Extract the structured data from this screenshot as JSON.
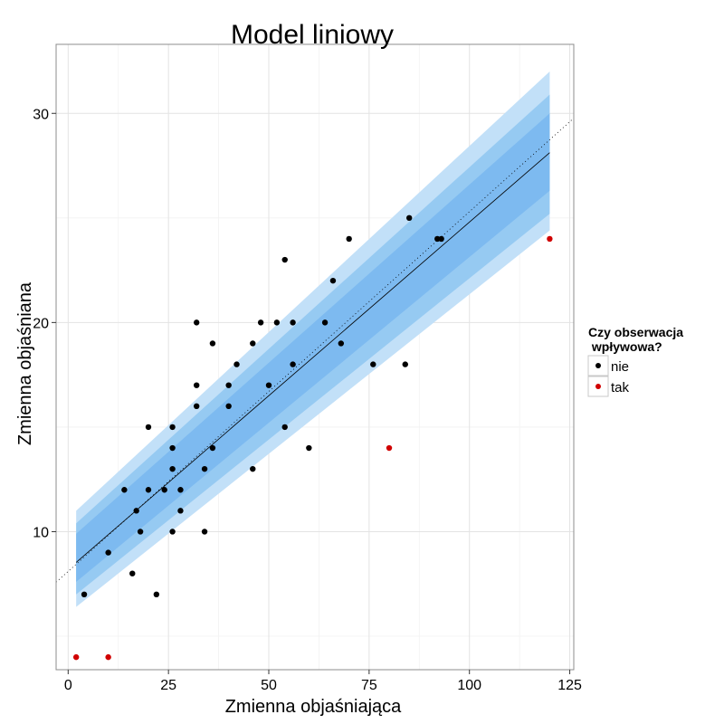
{
  "chart_data": {
    "type": "scatter",
    "title": "Model liniowy",
    "xlabel": "Zmienna objaśniająca",
    "ylabel": "Zmienna objaśniana",
    "xlim": [
      -3,
      126
    ],
    "ylim": [
      3.4,
      33.3
    ],
    "x_ticks": [
      0,
      25,
      50,
      75,
      100,
      125
    ],
    "y_ticks": [
      10,
      20,
      30
    ],
    "grid": true,
    "legend": {
      "title_line1": "Czy obserwacja",
      "title_line2": " wpływowa?",
      "placement": "right",
      "entries": [
        {
          "label": "nie",
          "color": "#000000"
        },
        {
          "label": "tak",
          "color": "#d00000"
        }
      ]
    },
    "fit_line": {
      "intercept": 8.2,
      "slope": 0.166,
      "x_range": [
        2,
        120
      ]
    },
    "reference_line": {
      "intercept": 8.1,
      "slope": 0.172,
      "style": "dotted"
    },
    "bands": [
      {
        "name": "outer",
        "color": "#c2e0f8",
        "x": [
          2,
          120
        ],
        "lower": [
          6.4,
          24.4
        ],
        "upper": [
          11.0,
          32.0
        ]
      },
      {
        "name": "middle",
        "color": "#96caf2",
        "x": [
          2,
          120
        ],
        "lower": [
          7.0,
          25.2
        ],
        "upper": [
          10.4,
          30.9
        ]
      },
      {
        "name": "inner",
        "color": "#7dbaf0",
        "x": [
          2,
          120
        ],
        "lower": [
          7.6,
          26.3
        ],
        "upper": [
          9.9,
          30.0
        ]
      }
    ],
    "series": [
      {
        "name": "nie",
        "color": "#000000",
        "points": [
          [
            4,
            7
          ],
          [
            10,
            9
          ],
          [
            14,
            12
          ],
          [
            16,
            8
          ],
          [
            17,
            11
          ],
          [
            18,
            10
          ],
          [
            20,
            15
          ],
          [
            20,
            12
          ],
          [
            22,
            7
          ],
          [
            24,
            12
          ],
          [
            26,
            15
          ],
          [
            26,
            14
          ],
          [
            26,
            13
          ],
          [
            26,
            10
          ],
          [
            28,
            12
          ],
          [
            28,
            11
          ],
          [
            32,
            20
          ],
          [
            32,
            17
          ],
          [
            32,
            16
          ],
          [
            34,
            13
          ],
          [
            34,
            10
          ],
          [
            36,
            19
          ],
          [
            36,
            14
          ],
          [
            40,
            17
          ],
          [
            40,
            16
          ],
          [
            42,
            18
          ],
          [
            46,
            19
          ],
          [
            46,
            13
          ],
          [
            48,
            20
          ],
          [
            50,
            17
          ],
          [
            52,
            20
          ],
          [
            54,
            23
          ],
          [
            54,
            15
          ],
          [
            56,
            20
          ],
          [
            56,
            18
          ],
          [
            60,
            14
          ],
          [
            64,
            20
          ],
          [
            66,
            22
          ],
          [
            68,
            19
          ],
          [
            70,
            24
          ],
          [
            76,
            18
          ],
          [
            84,
            18
          ],
          [
            85,
            25
          ],
          [
            92,
            24
          ],
          [
            93,
            24
          ]
        ]
      },
      {
        "name": "tak",
        "color": "#d00000",
        "points": [
          [
            2,
            4
          ],
          [
            10,
            4
          ],
          [
            80,
            14
          ],
          [
            120,
            24
          ]
        ]
      }
    ]
  }
}
